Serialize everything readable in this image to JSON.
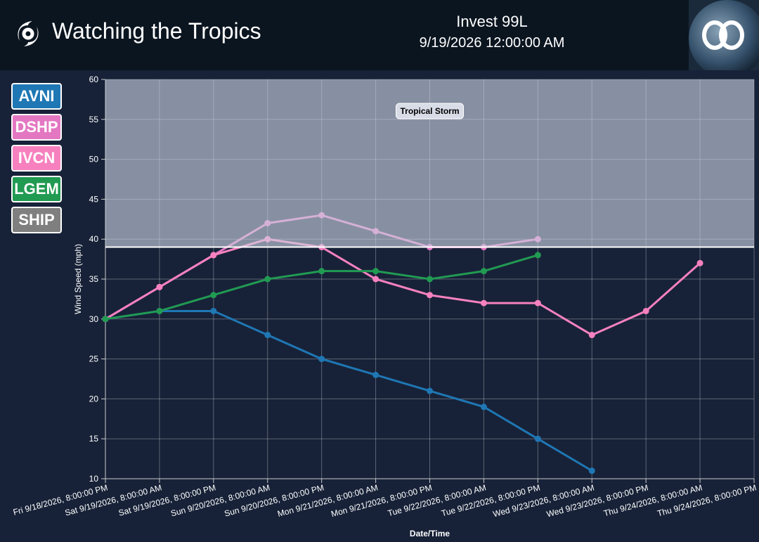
{
  "header": {
    "title": "Watching the Tropics",
    "storm": "Invest 99L",
    "time": "9/19/2026 12:00:00 AM"
  },
  "chart_data": {
    "type": "line",
    "xlabel": "Date/Time",
    "ylabel": "Wind Speed (mph)",
    "categories": [
      "Fri 9/18/2026, 8:00:00 PM",
      "Sat 9/19/2026, 8:00:00 AM",
      "Sat 9/19/2026, 8:00:00 PM",
      "Sun 9/20/2026, 8:00:00 AM",
      "Sun 9/20/2026, 8:00:00 PM",
      "Mon 9/21/2026, 8:00:00 AM",
      "Mon 9/21/2026, 8:00:00 PM",
      "Tue 9/22/2026, 8:00:00 AM",
      "Tue 9/22/2026, 8:00:00 PM",
      "Wed 9/23/2026, 8:00:00 AM",
      "Wed 9/23/2026, 8:00:00 PM",
      "Thu 9/24/2026, 8:00:00 AM",
      "Thu 9/24/2026, 8:00:00 PM"
    ],
    "series": [
      {
        "name": "AVNI",
        "color": "#1f77b4",
        "values": [
          30,
          31,
          31,
          28,
          25,
          23,
          21,
          19,
          15,
          11,
          null,
          null,
          null
        ]
      },
      {
        "name": "DSHP",
        "color": "#e377c2",
        "values": [
          30,
          34,
          38,
          42,
          43,
          41,
          39,
          39,
          40,
          null,
          null,
          null,
          null
        ]
      },
      {
        "name": "IVCN",
        "color": "#f781bf",
        "values": [
          30,
          34,
          38,
          40,
          39,
          35,
          33,
          32,
          32,
          28,
          31,
          37,
          null
        ]
      },
      {
        "name": "LGEM",
        "color": "#219a52",
        "values": [
          30,
          31,
          33,
          35,
          36,
          36,
          35,
          36,
          38,
          null,
          null,
          null,
          null
        ]
      },
      {
        "name": "SHIP",
        "color": "#7f7f7f",
        "values": [
          null,
          null,
          null,
          null,
          null,
          null,
          null,
          null,
          null,
          null,
          null,
          null,
          null
        ]
      }
    ],
    "bands": [
      {
        "label": "Tropical Storm",
        "from": 39,
        "to": 60
      }
    ],
    "ylim": [
      10,
      60
    ],
    "yticks": [
      10,
      15,
      20,
      25,
      30,
      35,
      40,
      45,
      50,
      55,
      60
    ],
    "grid": true
  }
}
